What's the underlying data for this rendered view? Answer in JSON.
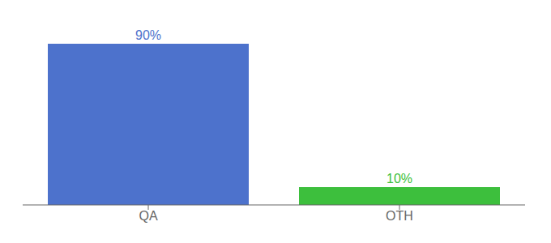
{
  "chart_data": {
    "type": "bar",
    "categories": [
      "QA",
      "OTH"
    ],
    "values": [
      90,
      10
    ],
    "colors": [
      "#4d72cc",
      "#3dbf3d"
    ],
    "value_labels": [
      "90%",
      "10%"
    ],
    "data_labels": true,
    "ylim": [
      0,
      100
    ],
    "grid": false,
    "tick_labels": "x"
  }
}
